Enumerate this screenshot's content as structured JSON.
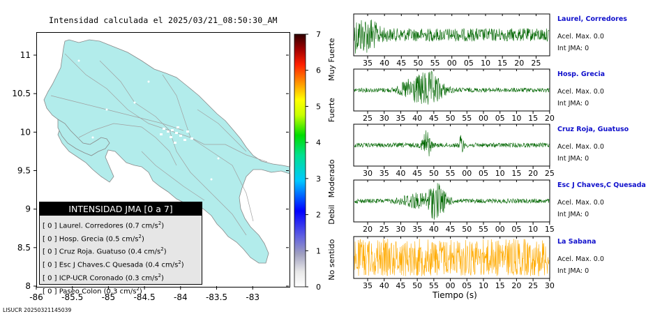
{
  "map": {
    "title": "Intensidad calculada el 2025/03/21_08:50:30_AM",
    "footer_id": "LISUCR 20250321145039",
    "land_color": "#b2eceb",
    "y_ticks": [
      "11",
      "10.5",
      "10",
      "9.5",
      "9",
      "8.5",
      "8"
    ],
    "x_ticks": [
      "-86",
      "-85.5",
      "-85",
      "-84.5",
      "-84",
      "-83.5",
      "-83"
    ]
  },
  "scale": {
    "ticks": [
      "0",
      "1",
      "2",
      "3",
      "4",
      "5",
      "6",
      "7"
    ],
    "labels": [
      "No sentido",
      "Debil",
      "Moderado",
      "Fuerte",
      "Muy Fuerte"
    ]
  },
  "legend": {
    "header": "INTENSIDAD JMA [0 a 7]",
    "rows": [
      {
        "badge": "[ 0 ]",
        "name": "Laurel. Corredores",
        "value": "(0.7 cm/s",
        "sup": "2",
        "close": ")"
      },
      {
        "badge": "[ 0 ]",
        "name": "Hosp. Grecia",
        "value": "(0.5 cm/s",
        "sup": "2",
        "close": ")"
      },
      {
        "badge": "[ 0 ]",
        "name": "Cruz Roja. Guatuso",
        "value": "(0.4 cm/s",
        "sup": "2",
        "close": ")"
      },
      {
        "badge": "[ 0 ]",
        "name": "Esc J Chaves.C Quesada",
        "value": "(0.4 cm/s",
        "sup": "2",
        "close": ")"
      },
      {
        "badge": "[ 0 ]",
        "name": "ICP-UCR Coronado",
        "value": "(0.3 cm/s",
        "sup": "2",
        "close": ")"
      },
      {
        "badge": "[ 0 ]",
        "name": "Paseo Colon",
        "value": "(0.3 cm/s",
        "sup": "2",
        "close": ")"
      }
    ]
  },
  "waveforms": {
    "xlabel": "Tiempo (s)",
    "stations": [
      {
        "name": "Laurel, Corredores",
        "acel": "Acel. Max. 0.0",
        "int": "Int JMA: 0",
        "color": "#006600",
        "ticks": [
          "35",
          "40",
          "45",
          "50",
          "55",
          "00",
          "05",
          "10",
          "15",
          "20",
          "25"
        ]
      },
      {
        "name": "Hosp. Grecia",
        "acel": "Acel. Max. 0.0",
        "int": "Int JMA: 0",
        "color": "#006600",
        "ticks": [
          "25",
          "30",
          "35",
          "40",
          "45",
          "50",
          "55",
          "00",
          "05",
          "10",
          "15",
          "20"
        ]
      },
      {
        "name": "Cruz Roja, Guatuso",
        "acel": "Acel. Max. 0.0",
        "int": "Int JMA: 0",
        "color": "#006600",
        "ticks": [
          "30",
          "35",
          "40",
          "45",
          "50",
          "55",
          "00",
          "05",
          "10",
          "15",
          "20",
          "25"
        ]
      },
      {
        "name": "Esc J Chaves,C Quesada",
        "acel": "Acel. Max. 0.0",
        "int": "Int JMA: 0",
        "color": "#006600",
        "ticks": [
          "20",
          "25",
          "30",
          "35",
          "40",
          "45",
          "50",
          "55",
          "00",
          "05",
          "10",
          "15"
        ]
      },
      {
        "name": "La Sabana",
        "acel": "Acel. Max. 0.0",
        "int": "Int JMA: 0",
        "color": "#ffaa00",
        "ticks": [
          "35",
          "40",
          "45",
          "50",
          "55",
          "00",
          "05",
          "10",
          "15",
          "20",
          "25",
          "30"
        ]
      }
    ]
  },
  "chart_data": [
    {
      "type": "heatmap",
      "title": "Intensidad calculada el 2025/03/21_08:50:30_AM",
      "xlim": [
        -86.0,
        -82.6
      ],
      "ylim": [
        8.0,
        11.2
      ],
      "x_ticks": [
        -86,
        -85.5,
        -85,
        -84.5,
        -84,
        -83.5,
        -83
      ],
      "y_ticks": [
        8,
        8.5,
        9,
        9.5,
        10,
        10.5,
        11
      ],
      "colorbar": {
        "min": 0,
        "max": 7,
        "labels": [
          "No sentido",
          "Debil",
          "Moderado",
          "Fuerte",
          "Muy Fuerte"
        ]
      },
      "stations": [
        {
          "name": "Laurel. Corredores",
          "intensity": 0,
          "pga_cm_s2": 0.7
        },
        {
          "name": "Hosp. Grecia",
          "intensity": 0,
          "pga_cm_s2": 0.5
        },
        {
          "name": "Cruz Roja. Guatuso",
          "intensity": 0,
          "pga_cm_s2": 0.4
        },
        {
          "name": "Esc J Chaves.C Quesada",
          "intensity": 0,
          "pga_cm_s2": 0.4
        },
        {
          "name": "ICP-UCR Coronado",
          "intensity": 0,
          "pga_cm_s2": 0.3
        },
        {
          "name": "Paseo Colon",
          "intensity": 0,
          "pga_cm_s2": 0.3
        }
      ]
    },
    {
      "type": "line",
      "xlabel": "Tiempo (s)",
      "series": [
        {
          "name": "Laurel, Corredores",
          "max_accel": 0.0,
          "jma_intensity": 0
        },
        {
          "name": "Hosp. Grecia",
          "max_accel": 0.0,
          "jma_intensity": 0
        },
        {
          "name": "Cruz Roja, Guatuso",
          "max_accel": 0.0,
          "jma_intensity": 0
        },
        {
          "name": "Esc J Chaves,C Quesada",
          "max_accel": 0.0,
          "jma_intensity": 0
        },
        {
          "name": "La Sabana",
          "max_accel": 0.0,
          "jma_intensity": 0
        }
      ]
    }
  ]
}
